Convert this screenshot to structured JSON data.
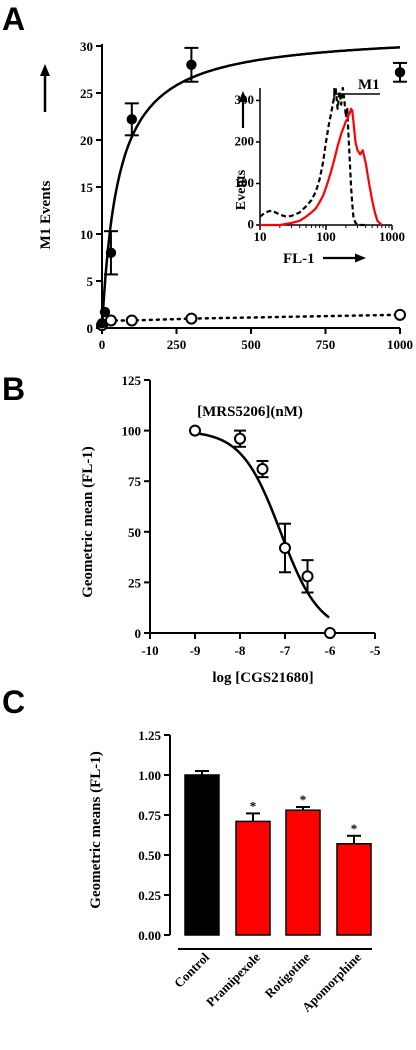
{
  "panels": {
    "a": "A",
    "b": "B",
    "c": "C"
  },
  "chart_data": [
    {
      "id": "A",
      "type": "scatter",
      "ylabel": "M1 Events",
      "xlabel": "[MRS5206](nM)",
      "xlim": [
        0,
        1000
      ],
      "ylim": [
        0,
        30
      ],
      "xticks": [
        "0",
        "250",
        "500",
        "750",
        "1000"
      ],
      "yticks": [
        "0",
        "5",
        "10",
        "15",
        "20",
        "25",
        "30"
      ],
      "grid": false,
      "series": [
        {
          "marker": "filled-circle",
          "line": "solid",
          "x": [
            0,
            10,
            30,
            100,
            300,
            1000
          ],
          "y": [
            0.5,
            1.7,
            8,
            22.2,
            28,
            27.2
          ],
          "err": [
            0,
            0,
            2.3,
            1.7,
            1.8,
            1.0
          ]
        },
        {
          "marker": "open-circle",
          "line": "dotted",
          "x": [
            0,
            30,
            100,
            300,
            1000
          ],
          "y": [
            0.3,
            0.8,
            0.8,
            1.0,
            1.4
          ]
        }
      ],
      "inset": {
        "type": "line",
        "ylabel": "Events",
        "xlabel": "FL-1",
        "gate_label": "M1",
        "xscale": "log",
        "xlim": [
          10,
          1000
        ],
        "ylim": [
          0,
          330
        ],
        "xticks": [
          "10",
          "100",
          "1000"
        ],
        "yticks": [
          "0",
          "100",
          "200",
          "300"
        ],
        "series": [
          {
            "color": "#000000",
            "style": "dashed",
            "x": [
              10,
              12,
              15,
              20,
              25,
              30,
              40,
              50,
              60,
              70,
              80,
              90,
              100,
              110,
              120,
              130,
              140,
              150,
              160,
              170,
              180,
              190,
              200,
              210,
              220,
              230,
              240,
              250,
              260,
              280,
              300,
              400
            ],
            "y": [
              20,
              30,
              35,
              25,
              20,
              22,
              30,
              45,
              60,
              80,
              110,
              150,
              200,
              240,
              270,
              300,
              330,
              280,
              320,
              290,
              330,
              300,
              260,
              280,
              210,
              150,
              90,
              50,
              20,
              5,
              0,
              0
            ]
          },
          {
            "color": "#ff0000",
            "style": "solid",
            "x": [
              10,
              20,
              30,
              40,
              50,
              60,
              70,
              80,
              90,
              100,
              110,
              120,
              130,
              140,
              150,
              160,
              170,
              180,
              190,
              200,
              210,
              220,
              230,
              240,
              250,
              260,
              280,
              300,
              330,
              360,
              400,
              450,
              500,
              550,
              600,
              700
            ],
            "y": [
              0,
              0,
              5,
              10,
              20,
              30,
              40,
              55,
              70,
              90,
              110,
              130,
              150,
              170,
              190,
              205,
              220,
              230,
              240,
              250,
              255,
              265,
              270,
              280,
              275,
              250,
              200,
              180,
              170,
              180,
              150,
              100,
              60,
              30,
              10,
              0
            ]
          }
        ]
      }
    },
    {
      "id": "B",
      "type": "scatter",
      "ylabel": "Geometric mean (FL-1)",
      "xlabel": "log [CGS21680]",
      "xlim": [
        -10,
        -5
      ],
      "ylim": [
        0,
        125
      ],
      "xticks": [
        "-10",
        "-9",
        "-8",
        "-7",
        "-6",
        "-5"
      ],
      "yticks": [
        "0",
        "25",
        "50",
        "75",
        "100",
        "125"
      ],
      "grid": false,
      "series": [
        {
          "marker": "open-circle",
          "line": "fit",
          "x": [
            -9,
            -8,
            -7.5,
            -7,
            -6.5,
            -6
          ],
          "y": [
            100,
            96,
            81,
            42,
            28,
            0
          ],
          "err": [
            0,
            4,
            4,
            12,
            8,
            0
          ],
          "fit_top": 100,
          "fit_bottom": 0,
          "fit_logec50": -7.1,
          "fit_hill": 1
        }
      ]
    },
    {
      "id": "C",
      "type": "bar",
      "ylabel": "Geometric means (FL-1)",
      "categories": [
        "Control",
        "Pramipexole",
        "Rotigotine",
        "Apomorphine"
      ],
      "values": [
        1.0,
        0.71,
        0.78,
        0.57
      ],
      "err": [
        0.025,
        0.05,
        0.02,
        0.05
      ],
      "significance": [
        "",
        "*",
        "*",
        "*"
      ],
      "colors": [
        "#000000",
        "#ff0000",
        "#ff0000",
        "#ff0000"
      ],
      "ylim": [
        0,
        1.25
      ],
      "yticks": [
        "0.00",
        "0.25",
        "0.50",
        "0.75",
        "1.00",
        "1.25"
      ],
      "grid": false
    }
  ]
}
